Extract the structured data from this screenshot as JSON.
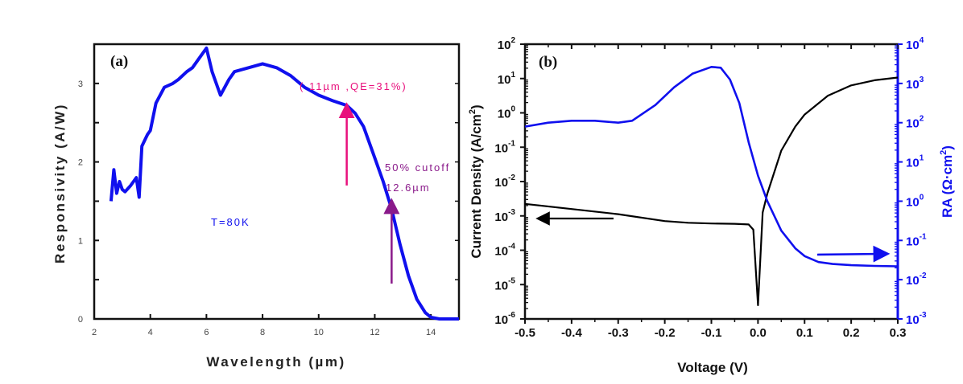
{
  "chart_data": [
    {
      "type": "line",
      "panel_label": "(a)",
      "title": "",
      "xlabel": "Wavelength (µm)",
      "ylabel": "Responsivity (A/W)",
      "xlim": [
        2,
        15
      ],
      "ylim": [
        0,
        3.5
      ],
      "x_ticks": [
        2,
        4,
        6,
        8,
        10,
        12,
        14
      ],
      "x_tick_labels": [
        "2",
        "4",
        "6",
        "8",
        "10",
        "12",
        "14"
      ],
      "y_ticks": [
        0,
        1,
        2,
        3
      ],
      "y_tick_labels": [
        "0",
        "1",
        "2",
        "3"
      ],
      "grid": false,
      "series": [
        {
          "name": "Responsivity",
          "color": "#1010ee",
          "x": [
            2.6,
            2.7,
            2.8,
            2.9,
            3.0,
            3.1,
            3.3,
            3.5,
            3.6,
            3.7,
            3.9,
            4.0,
            4.2,
            4.5,
            4.8,
            5.0,
            5.3,
            5.5,
            5.8,
            6.0,
            6.2,
            6.5,
            6.8,
            7.0,
            7.5,
            8.0,
            8.5,
            9.0,
            9.5,
            10.0,
            10.5,
            11.0,
            11.3,
            11.6,
            12.0,
            12.3,
            12.6,
            12.9,
            13.2,
            13.5,
            13.8,
            14.0,
            14.3,
            15.0
          ],
          "y": [
            1.5,
            1.9,
            1.6,
            1.75,
            1.65,
            1.62,
            1.7,
            1.8,
            1.55,
            2.2,
            2.35,
            2.4,
            2.75,
            2.95,
            3.0,
            3.05,
            3.15,
            3.2,
            3.35,
            3.45,
            3.15,
            2.85,
            3.05,
            3.15,
            3.2,
            3.25,
            3.2,
            3.1,
            2.95,
            2.85,
            2.78,
            2.72,
            2.62,
            2.45,
            2.05,
            1.75,
            1.4,
            0.95,
            0.55,
            0.25,
            0.08,
            0.02,
            0.0,
            0.0
          ]
        }
      ],
      "annotations": [
        {
          "text": "( 11µm ,QE=31%)",
          "color": "#e8107c",
          "arrow_x": 11,
          "arrow_from_y": 1.7,
          "arrow_to_y": 2.72
        },
        {
          "text": "50% cutoff",
          "color": "#8a1a8a"
        },
        {
          "text": "12.6µm",
          "color": "#8a1a8a",
          "arrow_x": 12.6,
          "arrow_from_y": 0.45,
          "arrow_to_y": 1.5
        },
        {
          "text": "T=80K",
          "color": "#1010ee"
        }
      ]
    },
    {
      "type": "line",
      "panel_label": "(b)",
      "title": "",
      "xlabel": "Voltage (V)",
      "ylabel": "Current Density (A/cm²)",
      "ylabel_base": "Current Density (A/cm",
      "ylabel_sup": "2",
      "ylabel_tail": ")",
      "y2label": "RA (Ω·cm²)",
      "y2label_base": "RA (Ω·cm",
      "y2label_sup": "2",
      "y2label_tail": ")",
      "xlim": [
        -0.5,
        0.3
      ],
      "ylim_log10": [
        -6,
        2
      ],
      "y2lim_log10": [
        -3,
        4
      ],
      "yscale": "log",
      "x_ticks": [
        -0.5,
        -0.4,
        -0.3,
        -0.2,
        -0.1,
        0.0,
        0.1,
        0.2,
        0.3
      ],
      "x_tick_labels": [
        "-0.5",
        "-0.4",
        "-0.3",
        "-0.2",
        "-0.1",
        "0.0",
        "0.1",
        "0.2",
        "0.3"
      ],
      "y_tick_exponents": [
        -6,
        -5,
        -4,
        -3,
        -2,
        -1,
        0,
        1,
        2
      ],
      "y2_tick_exponents": [
        -3,
        -2,
        -1,
        0,
        1,
        2,
        3,
        4
      ],
      "tick_base": "10",
      "grid": false,
      "series": [
        {
          "name": "Current Density",
          "axis": "left",
          "color": "#000000",
          "x": [
            -0.5,
            -0.4,
            -0.3,
            -0.2,
            -0.15,
            -0.1,
            -0.05,
            -0.02,
            -0.01,
            0.0,
            0.01,
            0.02,
            0.05,
            0.08,
            0.1,
            0.15,
            0.2,
            0.25,
            0.3
          ],
          "y_log10": [
            -2.65,
            -2.8,
            -2.95,
            -3.15,
            -3.2,
            -3.22,
            -3.23,
            -3.25,
            -3.4,
            -5.6,
            -2.9,
            -2.35,
            -1.1,
            -0.4,
            -0.05,
            0.5,
            0.8,
            0.95,
            1.03
          ]
        },
        {
          "name": "RA",
          "axis": "right",
          "color": "#1010ee",
          "x": [
            -0.5,
            -0.45,
            -0.4,
            -0.35,
            -0.3,
            -0.27,
            -0.22,
            -0.18,
            -0.14,
            -0.1,
            -0.08,
            -0.06,
            -0.04,
            -0.02,
            0.0,
            0.02,
            0.05,
            0.08,
            0.1,
            0.13,
            0.16,
            0.2,
            0.25,
            0.3
          ],
          "y2_log10": [
            1.9,
            2.0,
            2.05,
            2.05,
            2.0,
            2.05,
            2.45,
            2.9,
            3.25,
            3.42,
            3.4,
            3.1,
            2.5,
            1.5,
            0.65,
            0.0,
            -0.75,
            -1.2,
            -1.4,
            -1.55,
            -1.6,
            -1.63,
            -1.65,
            -1.66
          ]
        }
      ],
      "annotations": [
        {
          "type": "arrow",
          "direction": "left",
          "color": "#000000",
          "points_to": "left-axis"
        },
        {
          "type": "arrow",
          "direction": "right",
          "color": "#1010ee",
          "points_to": "right-axis"
        }
      ]
    }
  ]
}
